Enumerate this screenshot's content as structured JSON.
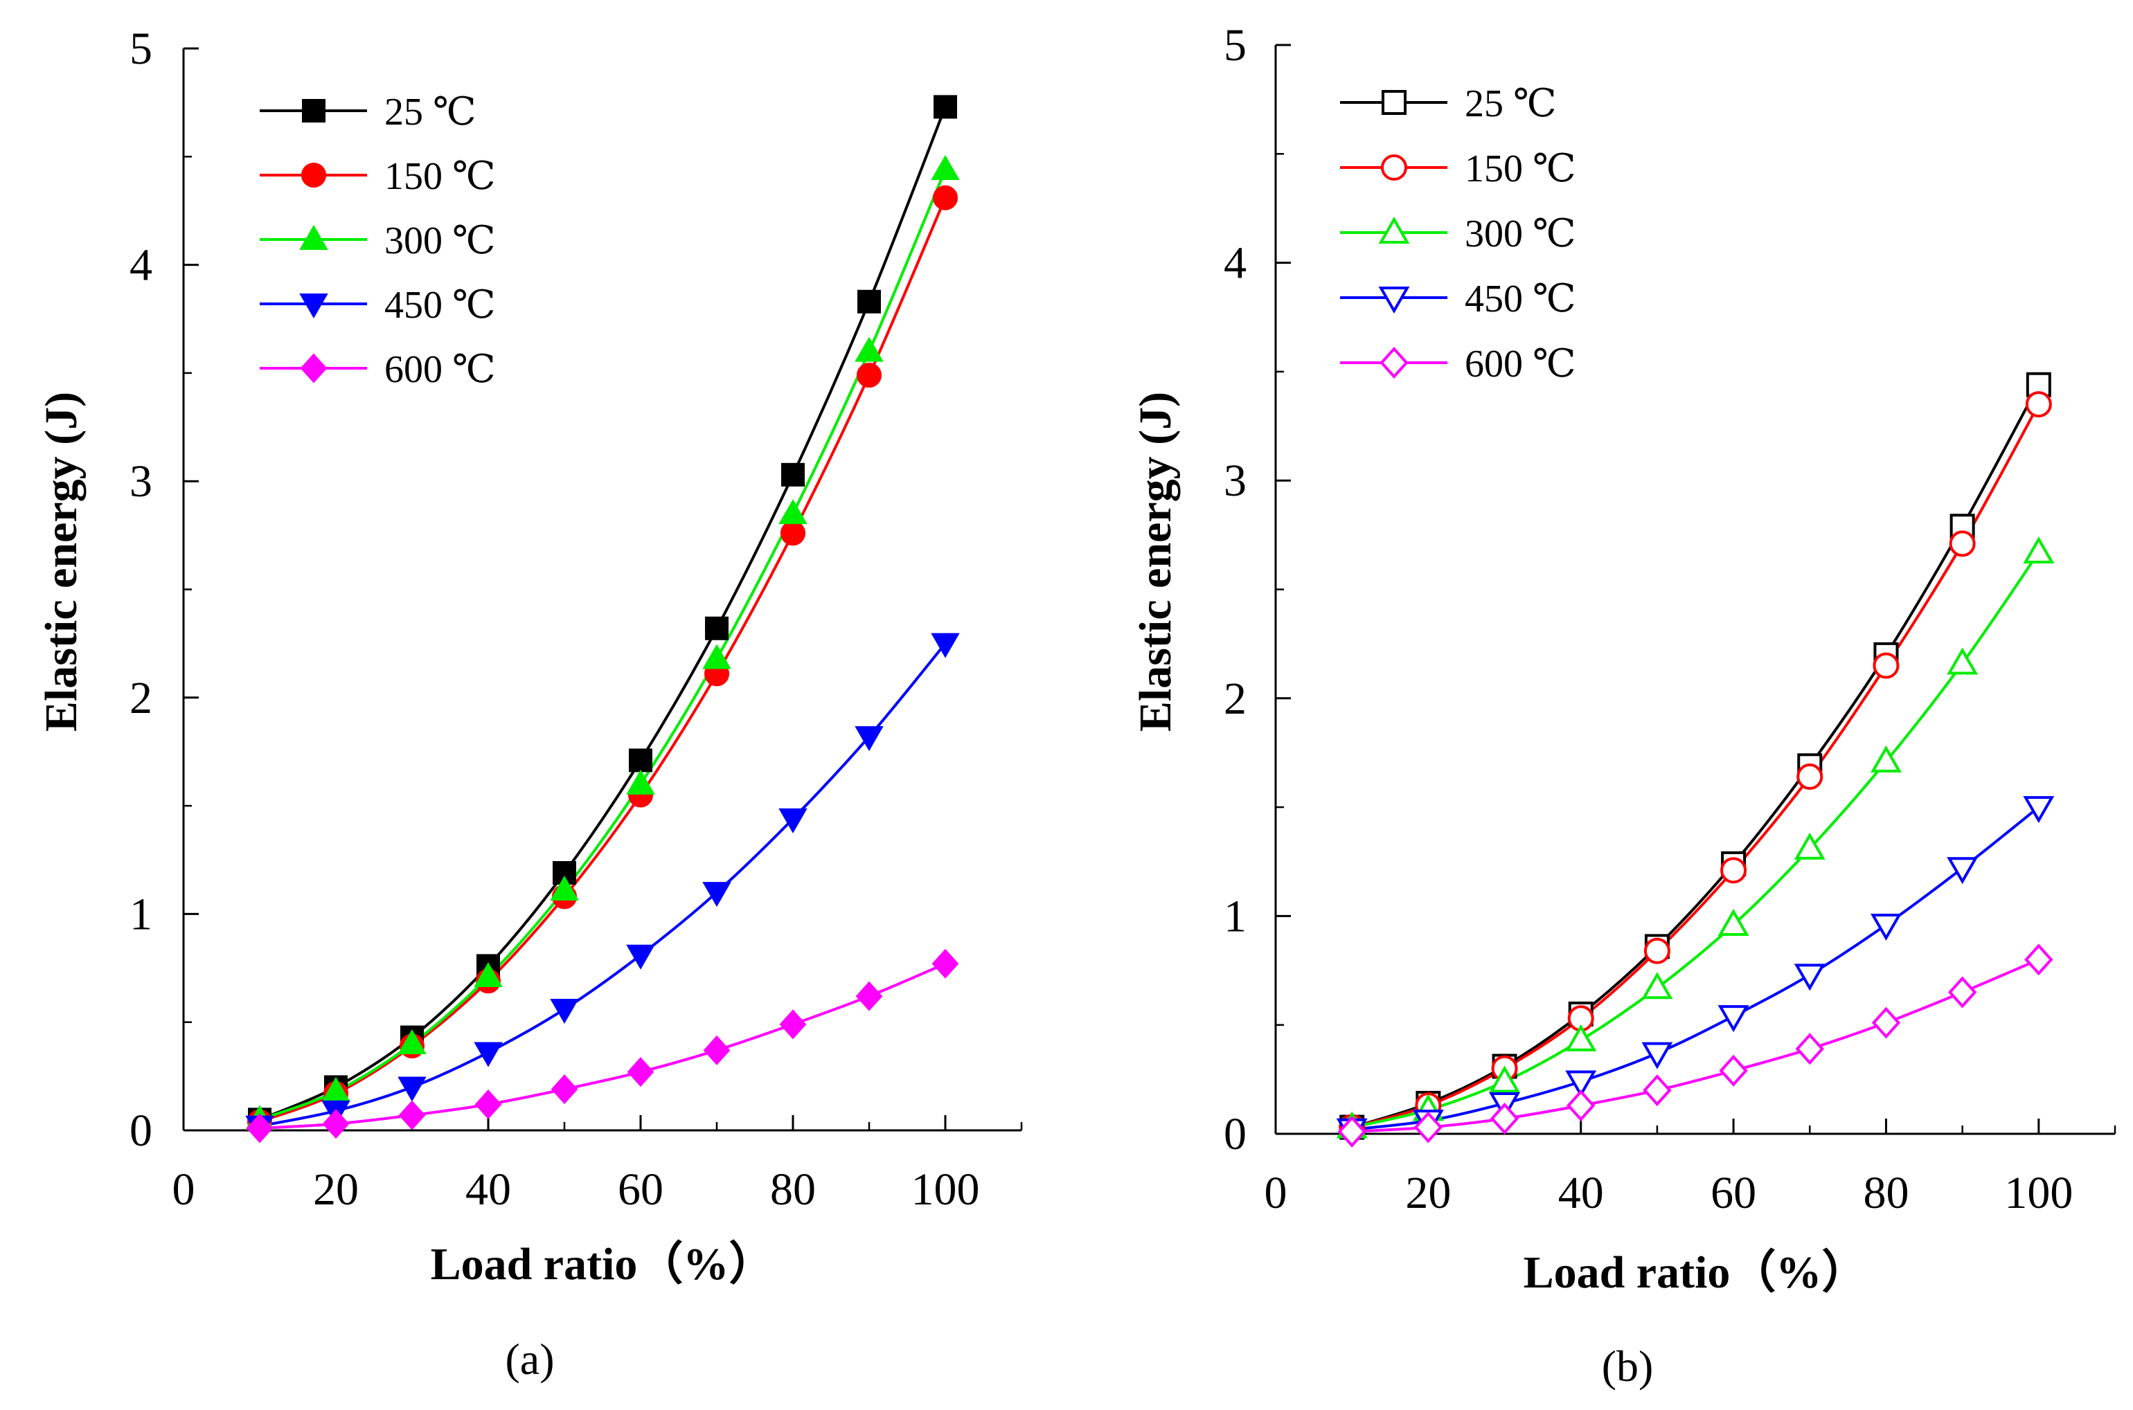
{
  "chart_data": [
    {
      "type": "line",
      "panel_label": "(a)",
      "xlabel": "Load ratio（%）",
      "ylabel": "Elastic energy (J)",
      "xlim": [
        0,
        110
      ],
      "ylim": [
        0,
        5
      ],
      "xticks": [
        0,
        20,
        40,
        60,
        80,
        100
      ],
      "yticks": [
        0,
        1,
        2,
        3,
        4,
        5
      ],
      "grid": false,
      "legend_position": "top-left",
      "marker_fill": "filled",
      "x": [
        10,
        20,
        30,
        40,
        50,
        60,
        70,
        80,
        90,
        100
      ],
      "series": [
        {
          "name": "25 ℃",
          "color": "#000000",
          "marker": "square",
          "values": [
            0.05,
            0.2,
            0.43,
            0.76,
            1.19,
            1.71,
            2.32,
            3.03,
            3.83,
            4.73
          ]
        },
        {
          "name": "150 ℃",
          "color": "#ff0000",
          "marker": "circle",
          "values": [
            0.04,
            0.17,
            0.39,
            0.69,
            1.08,
            1.55,
            2.11,
            2.76,
            3.49,
            4.31
          ]
        },
        {
          "name": "300 ℃",
          "color": "#00ee00",
          "marker": "triangle-up",
          "values": [
            0.05,
            0.18,
            0.4,
            0.71,
            1.11,
            1.6,
            2.18,
            2.85,
            3.6,
            4.44
          ]
        },
        {
          "name": "450 ℃",
          "color": "#0000ff",
          "marker": "triangle-down",
          "values": [
            0.02,
            0.09,
            0.2,
            0.36,
            0.56,
            0.81,
            1.1,
            1.44,
            1.82,
            2.25
          ]
        },
        {
          "name": "600 ℃",
          "color": "#ff00ff",
          "marker": "diamond",
          "values": [
            0.01,
            0.03,
            0.07,
            0.12,
            0.19,
            0.27,
            0.37,
            0.49,
            0.62,
            0.77
          ]
        }
      ]
    },
    {
      "type": "line",
      "panel_label": "(b)",
      "xlabel": "Load ratio（%）",
      "ylabel": "Elastic energy (J)",
      "xlim": [
        0,
        110
      ],
      "ylim": [
        0,
        5
      ],
      "xticks": [
        0,
        20,
        40,
        60,
        80,
        100
      ],
      "yticks": [
        0,
        1,
        2,
        3,
        4,
        5
      ],
      "grid": false,
      "legend_position": "top-left",
      "marker_fill": "hollow",
      "x": [
        10,
        20,
        30,
        40,
        50,
        60,
        70,
        80,
        90,
        100
      ],
      "series": [
        {
          "name": "25 ℃",
          "color": "#000000",
          "marker": "square",
          "values": [
            0.03,
            0.14,
            0.31,
            0.55,
            0.86,
            1.24,
            1.69,
            2.2,
            2.79,
            3.44
          ]
        },
        {
          "name": "150 ℃",
          "color": "#ff0000",
          "marker": "circle",
          "values": [
            0.03,
            0.13,
            0.3,
            0.53,
            0.84,
            1.21,
            1.64,
            2.15,
            2.71,
            3.35
          ]
        },
        {
          "name": "300 ℃",
          "color": "#00ee00",
          "marker": "triangle-up",
          "values": [
            0.03,
            0.11,
            0.24,
            0.43,
            0.67,
            0.96,
            1.31,
            1.71,
            2.16,
            2.67
          ]
        },
        {
          "name": "450 ℃",
          "color": "#0000ff",
          "marker": "triangle-down",
          "values": [
            0.02,
            0.06,
            0.14,
            0.24,
            0.37,
            0.54,
            0.73,
            0.96,
            1.22,
            1.5
          ]
        },
        {
          "name": "600 ℃",
          "color": "#ff00ff",
          "marker": "diamond",
          "values": [
            0.01,
            0.03,
            0.07,
            0.13,
            0.2,
            0.29,
            0.39,
            0.51,
            0.65,
            0.8
          ]
        }
      ]
    }
  ]
}
